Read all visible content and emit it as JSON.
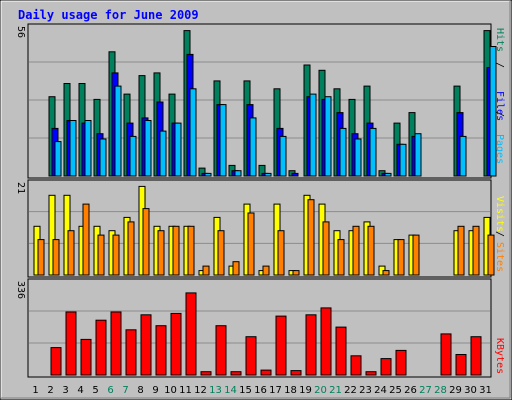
{
  "chart_data": [
    {
      "type": "bar",
      "title": "Daily usage for June 2009",
      "x": [
        "1",
        "2",
        "3",
        "4",
        "5",
        "6",
        "7",
        "8",
        "9",
        "10",
        "11",
        "12",
        "13",
        "14",
        "15",
        "16",
        "17",
        "18",
        "19",
        "20",
        "21",
        "22",
        "23",
        "24",
        "25",
        "26",
        "27",
        "28",
        "29",
        "30",
        "31"
      ],
      "weekend_days": [
        "6",
        "7",
        "13",
        "14",
        "20",
        "21",
        "27",
        "28"
      ],
      "ymax_label": "56",
      "ylim": [
        0,
        56
      ],
      "series": [
        {
          "name": "Hits",
          "color": "#00805c",
          "values": [
            0,
            30,
            35,
            35,
            29,
            47,
            31,
            38,
            39,
            31,
            55,
            3,
            36,
            4,
            36,
            4,
            33,
            2,
            42,
            40,
            33,
            29,
            34,
            2,
            20,
            24,
            0,
            0,
            34,
            0,
            55
          ]
        },
        {
          "name": "Files",
          "color": "#0000ff",
          "values": [
            0,
            18,
            21,
            20,
            16,
            39,
            20,
            22,
            28,
            20,
            46,
            1,
            27,
            2,
            27,
            1,
            18,
            1,
            30,
            29,
            24,
            16,
            20,
            1,
            12,
            15,
            0,
            0,
            24,
            0,
            41
          ]
        },
        {
          "name": "Pages",
          "color": "#00bfff",
          "values": [
            0,
            13,
            21,
            21,
            14,
            34,
            15,
            21,
            17,
            20,
            33,
            1,
            27,
            2,
            22,
            1,
            15,
            0,
            31,
            30,
            18,
            14,
            18,
            1,
            12,
            16,
            0,
            0,
            15,
            0,
            49
          ]
        }
      ]
    },
    {
      "type": "bar",
      "ymax_label": "21",
      "ylim": [
        0,
        21
      ],
      "series": [
        {
          "name": "Visits",
          "color": "#ffff00",
          "values": [
            11,
            18,
            18,
            11,
            11,
            10,
            13,
            20,
            11,
            11,
            11,
            1,
            13,
            2,
            16,
            1,
            16,
            1,
            18,
            16,
            10,
            10,
            12,
            2,
            8,
            9,
            0,
            0,
            10,
            10,
            13
          ]
        },
        {
          "name": "Sites",
          "color": "#ff8000",
          "values": [
            8,
            8,
            10,
            16,
            9,
            9,
            12,
            15,
            10,
            11,
            11,
            2,
            10,
            3,
            14,
            2,
            10,
            1,
            17,
            12,
            8,
            11,
            11,
            1,
            8,
            9,
            0,
            0,
            11,
            11,
            9
          ]
        }
      ]
    },
    {
      "type": "bar",
      "ymax_label": "336",
      "ylim": [
        0,
        336
      ],
      "series": [
        {
          "name": "KBytes",
          "color": "#ff0000",
          "values": [
            0,
            100,
            230,
            130,
            200,
            230,
            165,
            220,
            180,
            225,
            300,
            12,
            180,
            12,
            140,
            18,
            215,
            16,
            220,
            245,
            175,
            70,
            12,
            60,
            90,
            0,
            0,
            150,
            75,
            140,
            0
          ]
        }
      ]
    }
  ]
}
